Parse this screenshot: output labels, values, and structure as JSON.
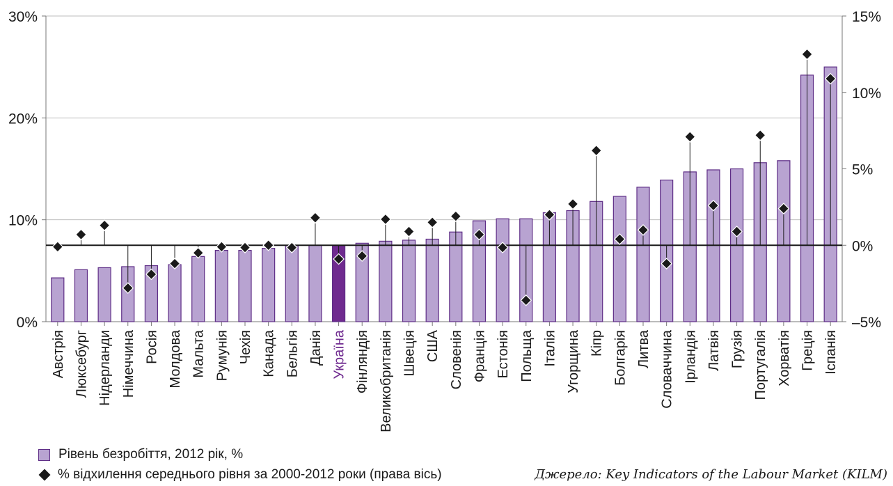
{
  "chart_data": {
    "type": "bar",
    "categories": [
      "Австрія",
      "Люксебург",
      "Нідерланди",
      "Німеччина",
      "Росія",
      "Молдова",
      "Мальта",
      "Румунія",
      "Чехія",
      "Канада",
      "Бельгія",
      "Данія",
      "Україна",
      "Фінляндія",
      "Великобританія",
      "Швеція",
      "США",
      "Словенія",
      "Франція",
      "Естонія",
      "Польща",
      "Італія",
      "Угорщина",
      "Кіпр",
      "Болгарія",
      "Литва",
      "Словаччина",
      "Ірландія",
      "Латвія",
      "Грузія",
      "Португалія",
      "Хорватія",
      "Греція",
      "Іспанія"
    ],
    "series": [
      {
        "name": "Рівень безробіття, 2012 рік, %",
        "axis": "left",
        "values": [
          4.3,
          5.1,
          5.3,
          5.4,
          5.5,
          5.6,
          6.4,
          7.0,
          7.0,
          7.2,
          7.5,
          7.5,
          7.5,
          7.7,
          7.9,
          8.0,
          8.1,
          8.8,
          9.9,
          10.1,
          10.1,
          10.7,
          10.9,
          11.8,
          12.3,
          13.2,
          13.9,
          14.7,
          14.9,
          15.0,
          15.6,
          15.8,
          24.2,
          25.0
        ]
      },
      {
        "name": "% відхилення середнього рівня за 2000-2012 роки (права вісь)",
        "axis": "right",
        "values": [
          -0.1,
          0.7,
          1.3,
          -2.8,
          -1.9,
          -1.2,
          -0.5,
          -0.1,
          -0.15,
          0.0,
          -0.15,
          1.8,
          -0.9,
          -0.7,
          1.7,
          0.9,
          1.5,
          1.9,
          0.7,
          -0.15,
          -3.6,
          2.0,
          2.7,
          6.2,
          0.4,
          1.0,
          -1.2,
          7.1,
          2.6,
          0.9,
          7.2,
          2.4,
          12.5,
          10.9
        ]
      }
    ],
    "highlight_category": "Україна",
    "y_left": {
      "ticks": [
        "0%",
        "10%",
        "20%",
        "30%"
      ],
      "range": [
        0,
        30
      ]
    },
    "y_right": {
      "ticks": [
        "–5%",
        "0%",
        "5%",
        "10%",
        "15%"
      ],
      "range": [
        -5,
        15
      ]
    },
    "grid": true,
    "legend_position": "bottom-left",
    "colors": {
      "bar": "#b8a3d1",
      "bar_border": "#5e2d86",
      "highlight_bar": "#6f2a8f",
      "highlight_label": "#6f2a8f",
      "marker": "#1a1a1a",
      "grid": "#bdbdbd"
    }
  },
  "legend": {
    "bar_label": "Рівень безробіття, 2012 рік, %",
    "marker_label": "% відхилення середнього рівня за 2000-2012 роки (права вісь)"
  },
  "source": "Джерело: Key Indicators of the Labour Market (KILM)"
}
